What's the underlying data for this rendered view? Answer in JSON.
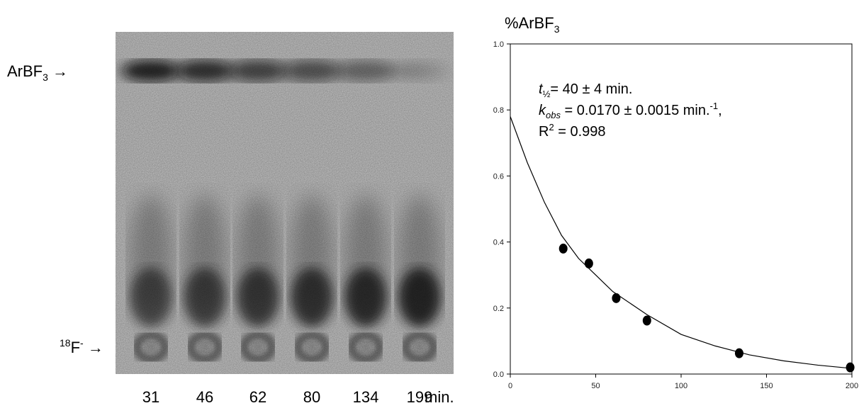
{
  "gel": {
    "band_labels": [
      [
        "ArBF",
        "3"
      ],
      [
        "18",
        "F",
        "-"
      ]
    ],
    "lane_labels": [
      "31",
      "46",
      "62",
      "80",
      "134",
      "199"
    ],
    "unit": "min."
  },
  "chart_data": {
    "type": "scatter",
    "y_label": [
      "%ArBF",
      "3"
    ],
    "annotation": [
      [
        "t",
        "½",
        "= 40 ± 4 min."
      ],
      [
        "k",
        "obs",
        " = 0.0170 ± 0.0015 min.",
        "-1",
        ","
      ],
      [
        "R",
        "2",
        " = 0.998"
      ]
    ],
    "xlim": [
      0,
      200
    ],
    "ylim": [
      0,
      1
    ],
    "xticks": [
      0,
      50,
      100,
      150,
      200
    ],
    "yticks": [
      {
        "value": 0,
        "label": "0.0"
      },
      {
        "value": 0.2,
        "label": "0.2"
      },
      {
        "value": 0.4,
        "label": "0.4"
      },
      {
        "value": 0.6,
        "label": "0.6"
      },
      {
        "value": 0.8,
        "label": "0.8"
      },
      {
        "value": 1,
        "label": "1.0"
      }
    ],
    "series": [
      {
        "type": "scatter",
        "color": "#000000",
        "x": [
          31,
          46,
          62,
          80,
          134,
          199
        ],
        "values": [
          0.38,
          0.335,
          0.23,
          0.162,
          0.063,
          0.02
        ]
      },
      {
        "type": "line",
        "color": "#000000",
        "x": [
          0,
          10,
          20,
          30,
          40,
          50,
          60,
          80,
          100,
          120,
          140,
          160,
          180,
          200
        ],
        "values": [
          0.78,
          0.64,
          0.52,
          0.42,
          0.35,
          0.3,
          0.25,
          0.18,
          0.12,
          0.085,
          0.058,
          0.04,
          0.027,
          0.017
        ]
      }
    ]
  }
}
